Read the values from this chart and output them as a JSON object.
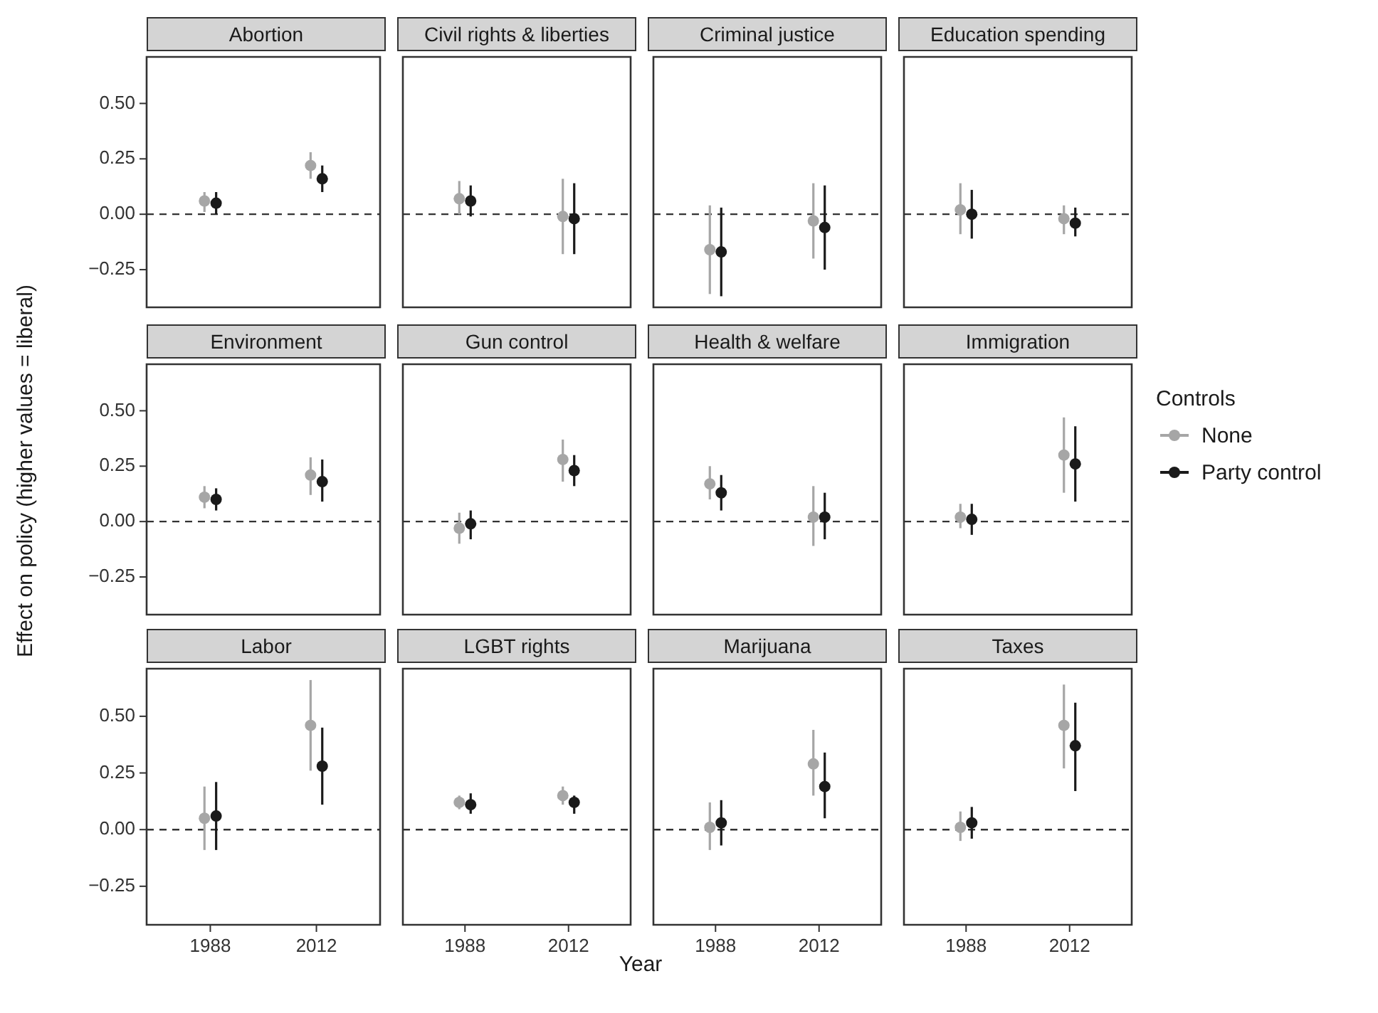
{
  "chart_data": [
    {
      "type": "scatter",
      "title": "Abortion",
      "categories": [
        "1988",
        "2012"
      ],
      "ylim": [
        -0.42,
        0.71
      ],
      "yticks": [
        {
          "value": -0.25,
          "label": "−0.25"
        },
        {
          "value": 0,
          "label": "0.00"
        },
        {
          "value": 0.25,
          "label": "0.25"
        },
        {
          "value": 0.5,
          "label": "0.50"
        }
      ],
      "tick_labels": "y",
      "marker": "circle",
      "ref_lines": [
        {
          "axis": "y",
          "value": 0,
          "line_style": "dashed"
        }
      ],
      "series": [
        {
          "color": "#a6a6a6",
          "values": [
            0.06,
            0.22
          ],
          "errors": [
            [
              0.01,
              0.1
            ],
            [
              0.16,
              0.28
            ]
          ]
        },
        {
          "color": "#1a1a1a",
          "values": [
            0.05,
            0.16
          ],
          "errors": [
            [
              0.0,
              0.1
            ],
            [
              0.1,
              0.22
            ]
          ]
        }
      ]
    },
    {
      "type": "scatter",
      "title": "Civil rights & liberties",
      "categories": [
        "1988",
        "2012"
      ],
      "ylim": [
        -0.42,
        0.71
      ],
      "tick_labels": false,
      "marker": "circle",
      "ref_lines": [
        {
          "axis": "y",
          "value": 0,
          "line_style": "dashed"
        }
      ],
      "series": [
        {
          "color": "#a6a6a6",
          "values": [
            0.07,
            -0.01
          ],
          "errors": [
            [
              0.0,
              0.15
            ],
            [
              -0.18,
              0.16
            ]
          ]
        },
        {
          "color": "#1a1a1a",
          "values": [
            0.06,
            -0.02
          ],
          "errors": [
            [
              -0.01,
              0.13
            ],
            [
              -0.18,
              0.14
            ]
          ]
        }
      ]
    },
    {
      "type": "scatter",
      "title": "Criminal justice",
      "categories": [
        "1988",
        "2012"
      ],
      "ylim": [
        -0.42,
        0.71
      ],
      "tick_labels": false,
      "marker": "circle",
      "ref_lines": [
        {
          "axis": "y",
          "value": 0,
          "line_style": "dashed"
        }
      ],
      "series": [
        {
          "color": "#a6a6a6",
          "values": [
            -0.16,
            -0.03
          ],
          "errors": [
            [
              -0.36,
              0.04
            ],
            [
              -0.2,
              0.14
            ]
          ]
        },
        {
          "color": "#1a1a1a",
          "values": [
            -0.17,
            -0.06
          ],
          "errors": [
            [
              -0.37,
              0.03
            ],
            [
              -0.25,
              0.13
            ]
          ]
        }
      ]
    },
    {
      "type": "scatter",
      "title": "Education spending",
      "categories": [
        "1988",
        "2012"
      ],
      "ylim": [
        -0.42,
        0.71
      ],
      "tick_labels": false,
      "marker": "circle",
      "ref_lines": [
        {
          "axis": "y",
          "value": 0,
          "line_style": "dashed"
        }
      ],
      "series": [
        {
          "color": "#a6a6a6",
          "values": [
            0.02,
            -0.02
          ],
          "errors": [
            [
              -0.09,
              0.14
            ],
            [
              -0.09,
              0.04
            ]
          ]
        },
        {
          "color": "#1a1a1a",
          "values": [
            0.0,
            -0.04
          ],
          "errors": [
            [
              -0.11,
              0.11
            ],
            [
              -0.1,
              0.03
            ]
          ]
        }
      ]
    },
    {
      "type": "scatter",
      "title": "Environment",
      "categories": [
        "1988",
        "2012"
      ],
      "ylabel": "Effect on policy (higher values = liberal)",
      "ylim": [
        -0.42,
        0.71
      ],
      "yticks": [
        {
          "value": -0.25,
          "label": "−0.25"
        },
        {
          "value": 0,
          "label": "0.00"
        },
        {
          "value": 0.25,
          "label": "0.25"
        },
        {
          "value": 0.5,
          "label": "0.50"
        }
      ],
      "tick_labels": "y",
      "marker": "circle",
      "ref_lines": [
        {
          "axis": "y",
          "value": 0,
          "line_style": "dashed"
        }
      ],
      "series": [
        {
          "color": "#a6a6a6",
          "values": [
            0.11,
            0.21
          ],
          "errors": [
            [
              0.06,
              0.16
            ],
            [
              0.12,
              0.29
            ]
          ]
        },
        {
          "color": "#1a1a1a",
          "values": [
            0.1,
            0.18
          ],
          "errors": [
            [
              0.05,
              0.15
            ],
            [
              0.09,
              0.28
            ]
          ]
        }
      ]
    },
    {
      "type": "scatter",
      "title": "Gun control",
      "categories": [
        "1988",
        "2012"
      ],
      "ylim": [
        -0.42,
        0.71
      ],
      "tick_labels": false,
      "marker": "circle",
      "ref_lines": [
        {
          "axis": "y",
          "value": 0,
          "line_style": "dashed"
        }
      ],
      "series": [
        {
          "color": "#a6a6a6",
          "values": [
            -0.03,
            0.28
          ],
          "errors": [
            [
              -0.1,
              0.04
            ],
            [
              0.18,
              0.37
            ]
          ]
        },
        {
          "color": "#1a1a1a",
          "values": [
            -0.01,
            0.23
          ],
          "errors": [
            [
              -0.08,
              0.05
            ],
            [
              0.16,
              0.3
            ]
          ]
        }
      ]
    },
    {
      "type": "scatter",
      "title": "Health & welfare",
      "categories": [
        "1988",
        "2012"
      ],
      "ylim": [
        -0.42,
        0.71
      ],
      "tick_labels": false,
      "marker": "circle",
      "ref_lines": [
        {
          "axis": "y",
          "value": 0,
          "line_style": "dashed"
        }
      ],
      "series": [
        {
          "color": "#a6a6a6",
          "values": [
            0.17,
            0.02
          ],
          "errors": [
            [
              0.1,
              0.25
            ],
            [
              -0.11,
              0.16
            ]
          ]
        },
        {
          "color": "#1a1a1a",
          "values": [
            0.13,
            0.02
          ],
          "errors": [
            [
              0.05,
              0.21
            ],
            [
              -0.08,
              0.13
            ]
          ]
        }
      ]
    },
    {
      "type": "scatter",
      "title": "Immigration",
      "categories": [
        "1988",
        "2012"
      ],
      "legend": "right",
      "legend_title": "Controls",
      "ylim": [
        -0.42,
        0.71
      ],
      "tick_labels": false,
      "marker": "circle",
      "ref_lines": [
        {
          "axis": "y",
          "value": 0,
          "line_style": "dashed"
        }
      ],
      "series": [
        {
          "name": "None",
          "color": "#a6a6a6",
          "values": [
            0.02,
            0.3
          ],
          "errors": [
            [
              -0.03,
              0.08
            ],
            [
              0.13,
              0.47
            ]
          ]
        },
        {
          "name": "Party control",
          "color": "#1a1a1a",
          "values": [
            0.01,
            0.26
          ],
          "errors": [
            [
              -0.06,
              0.08
            ],
            [
              0.09,
              0.43
            ]
          ]
        }
      ]
    },
    {
      "type": "scatter",
      "title": "Labor",
      "categories": [
        "1988",
        "2012"
      ],
      "ylim": [
        -0.42,
        0.71
      ],
      "yticks": [
        {
          "value": -0.25,
          "label": "−0.25"
        },
        {
          "value": 0,
          "label": "0.00"
        },
        {
          "value": 0.25,
          "label": "0.25"
        },
        {
          "value": 0.5,
          "label": "0.50"
        }
      ],
      "marker": "circle",
      "ref_lines": [
        {
          "axis": "y",
          "value": 0,
          "line_style": "dashed"
        }
      ],
      "series": [
        {
          "color": "#a6a6a6",
          "values": [
            0.05,
            0.46
          ],
          "errors": [
            [
              -0.09,
              0.19
            ],
            [
              0.26,
              0.66
            ]
          ]
        },
        {
          "color": "#1a1a1a",
          "values": [
            0.06,
            0.28
          ],
          "errors": [
            [
              -0.09,
              0.21
            ],
            [
              0.11,
              0.45
            ]
          ]
        }
      ]
    },
    {
      "type": "scatter",
      "title": "LGBT rights",
      "categories": [
        "1988",
        "2012"
      ],
      "xlabel": "Year",
      "ylim": [
        -0.42,
        0.71
      ],
      "tick_labels": "x",
      "marker": "circle",
      "ref_lines": [
        {
          "axis": "y",
          "value": 0,
          "line_style": "dashed"
        }
      ],
      "series": [
        {
          "color": "#a6a6a6",
          "values": [
            0.12,
            0.15
          ],
          "errors": [
            [
              0.09,
              0.15
            ],
            [
              0.11,
              0.19
            ]
          ]
        },
        {
          "color": "#1a1a1a",
          "values": [
            0.11,
            0.12
          ],
          "errors": [
            [
              0.07,
              0.16
            ],
            [
              0.07,
              0.15
            ]
          ]
        }
      ]
    },
    {
      "type": "scatter",
      "title": "Marijuana",
      "categories": [
        "1988",
        "2012"
      ],
      "ylim": [
        -0.42,
        0.71
      ],
      "tick_labels": "x",
      "marker": "circle",
      "ref_lines": [
        {
          "axis": "y",
          "value": 0,
          "line_style": "dashed"
        }
      ],
      "series": [
        {
          "color": "#a6a6a6",
          "values": [
            0.01,
            0.29
          ],
          "errors": [
            [
              -0.09,
              0.12
            ],
            [
              0.15,
              0.44
            ]
          ]
        },
        {
          "color": "#1a1a1a",
          "values": [
            0.03,
            0.19
          ],
          "errors": [
            [
              -0.07,
              0.13
            ],
            [
              0.05,
              0.34
            ]
          ]
        }
      ]
    },
    {
      "type": "scatter",
      "title": "Taxes",
      "categories": [
        "1988",
        "2012"
      ],
      "ylim": [
        -0.42,
        0.71
      ],
      "tick_labels": "x",
      "marker": "circle",
      "ref_lines": [
        {
          "axis": "y",
          "value": 0,
          "line_style": "dashed"
        }
      ],
      "series": [
        {
          "color": "#a6a6a6",
          "values": [
            0.01,
            0.46
          ],
          "errors": [
            [
              -0.05,
              0.08
            ],
            [
              0.27,
              0.64
            ]
          ]
        },
        {
          "color": "#1a1a1a",
          "values": [
            0.03,
            0.37
          ],
          "errors": [
            [
              -0.04,
              0.1
            ],
            [
              0.17,
              0.56
            ]
          ]
        }
      ]
    }
  ]
}
